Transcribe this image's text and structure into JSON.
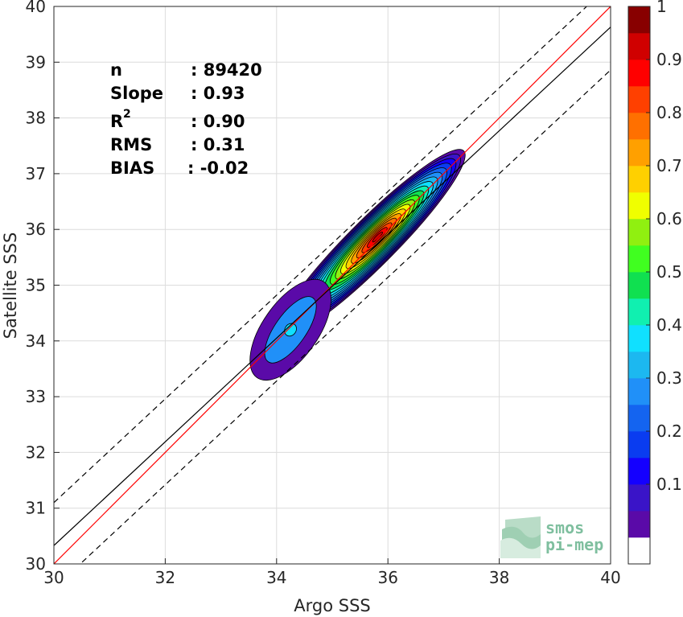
{
  "chart_data": {
    "type": "contour-density-scatter",
    "xlabel": "Argo SSS",
    "ylabel": "Satellite SSS",
    "xlim": [
      30,
      40
    ],
    "ylim": [
      30,
      40
    ],
    "xticks": [
      "30",
      "32",
      "34",
      "36",
      "38",
      "40"
    ],
    "yticks": [
      "30",
      "31",
      "32",
      "33",
      "34",
      "35",
      "36",
      "37",
      "38",
      "39",
      "40"
    ],
    "grid": true,
    "stats": [
      {
        "label": "n",
        "value": ": 89420"
      },
      {
        "label": "Slope",
        "value": ": 0.93"
      },
      {
        "label": "R",
        "sup": "2",
        "value": ": 0.90"
      },
      {
        "label": "RMS",
        "value": ": 0.31"
      },
      {
        "label": "BIAS",
        "value": ": -0.02"
      }
    ],
    "lines": [
      {
        "kind": "identity",
        "color": "#ff0000",
        "x": [
          30,
          40
        ],
        "y": [
          30,
          40
        ]
      },
      {
        "kind": "regression",
        "color": "#000000",
        "x": [
          30,
          40
        ],
        "y": [
          30.33,
          39.63
        ]
      },
      {
        "kind": "regression-plus-offset",
        "color": "#000000",
        "dashed": true,
        "x": [
          30,
          40
        ],
        "y": [
          31.1,
          40.4
        ]
      },
      {
        "kind": "regression-minus-offset",
        "color": "#000000",
        "dashed": true,
        "x": [
          30,
          40
        ],
        "y": [
          29.56,
          38.86
        ]
      }
    ],
    "density": {
      "center": [
        35.7,
        35.75
      ],
      "levels": [
        0.05,
        0.1,
        0.15,
        0.2,
        0.25,
        0.3,
        0.35,
        0.4,
        0.45,
        0.5,
        0.55,
        0.6,
        0.65,
        0.7,
        0.75,
        0.8,
        0.85,
        0.9,
        0.95
      ],
      "secondary_peak": [
        34.5,
        34.5
      ]
    },
    "colorbar": {
      "ticks": [
        "0.1",
        "0.2",
        "0.3",
        "0.4",
        "0.5",
        "0.6",
        "0.7",
        "0.8",
        "0.9",
        "1"
      ],
      "tick_values": [
        0.1,
        0.2,
        0.3,
        0.4,
        0.5,
        0.6,
        0.7,
        0.8,
        0.9,
        1
      ],
      "colors": [
        "#ffffff",
        "#5a0aa8",
        "#3a14c8",
        "#1400ff",
        "#0a3cf0",
        "#1464f0",
        "#2090f8",
        "#1cb8f0",
        "#10e0ff",
        "#10f0b0",
        "#10e050",
        "#40ff20",
        "#90f010",
        "#f0ff00",
        "#ffd000",
        "#ffa000",
        "#ff7000",
        "#ff4000",
        "#ff0000",
        "#d00000",
        "#880000"
      ]
    }
  },
  "logo": {
    "line1": "smos",
    "line2": "pi-mep"
  }
}
